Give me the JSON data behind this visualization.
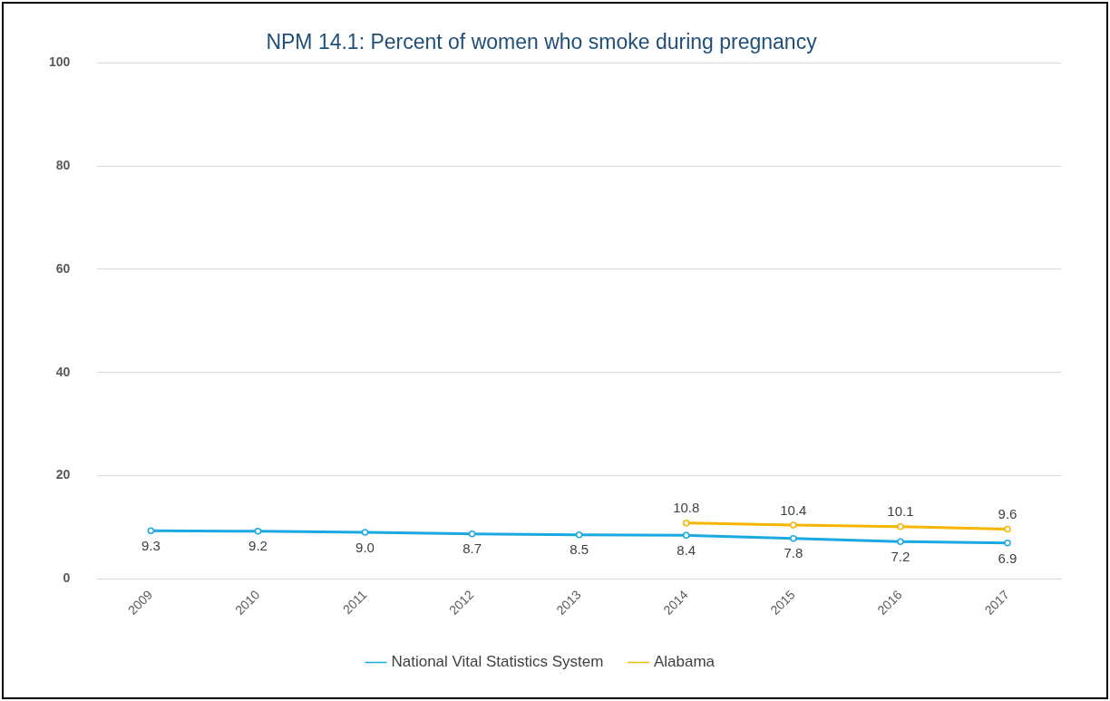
{
  "chart_data": {
    "type": "line",
    "title": "NPM 14.1: Percent of women who smoke during pregnancy",
    "categories": [
      "2009",
      "2010",
      "2011",
      "2012",
      "2013",
      "2014",
      "2015",
      "2016",
      "2017"
    ],
    "series": [
      {
        "name": "National Vital Statistics System",
        "color": "#1aa9e3",
        "values": [
          9.3,
          9.2,
          9.0,
          8.7,
          8.5,
          8.4,
          7.8,
          7.2,
          6.9
        ],
        "value_labels": [
          "9.3",
          "9.2",
          "9.0",
          "8.7",
          "8.5",
          "8.4",
          "7.8",
          "7.2",
          "6.9"
        ]
      },
      {
        "name": "Alabama",
        "color": "#f7b500",
        "values": [
          null,
          null,
          null,
          null,
          null,
          10.8,
          10.4,
          10.1,
          9.6
        ],
        "value_labels": [
          null,
          null,
          null,
          null,
          null,
          "10.8",
          "10.4",
          "10.1",
          "9.6"
        ]
      }
    ],
    "ylim": [
      0,
      100
    ],
    "yticks": [
      0,
      20,
      40,
      60,
      80,
      100
    ],
    "grid": "y",
    "legend": "bottom",
    "marker": "circle",
    "line_style": "solid"
  }
}
